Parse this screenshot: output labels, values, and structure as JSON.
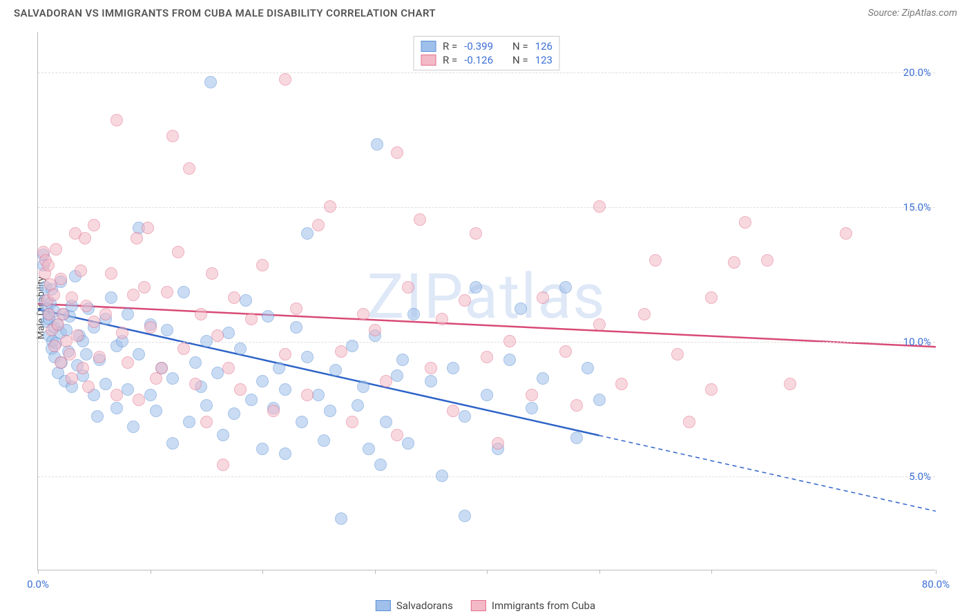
{
  "title": "SALVADORAN VS IMMIGRANTS FROM CUBA MALE DISABILITY CORRELATION CHART",
  "source": "Source: ZipAtlas.com",
  "watermark": "ZIPatlas",
  "ylabel": "Male Disability",
  "chart": {
    "type": "scatter",
    "xlim": [
      0,
      80
    ],
    "ylim": [
      1.5,
      21.5
    ],
    "x_ticks": [
      0,
      10,
      20,
      30,
      40,
      50,
      60,
      80
    ],
    "x_tick_labels": {
      "0": "0.0%",
      "80": "80.0%"
    },
    "y_gridlines": [
      5,
      10,
      15,
      20
    ],
    "y_tick_labels": {
      "5": "5.0%",
      "10": "10.0%",
      "15": "15.0%",
      "20": "20.0%"
    },
    "background_color": "#ffffff",
    "grid_color": "#dddddd",
    "axis_color": "#bbbbbb",
    "tick_label_color": "#3b6fd6",
    "point_radius": 9,
    "point_opacity": 0.55,
    "series": [
      {
        "name": "Salvadorans",
        "key": "salvadoran",
        "fill": "#9fc0ea",
        "stroke": "#5b8fd6",
        "line_color": "#2d63c8",
        "r": "-0.399",
        "n": "126",
        "regression": {
          "y_at_x0": 11.2,
          "y_at_x80": 3.7,
          "solid_until_x": 50
        },
        "points": [
          [
            0.5,
            13.2
          ],
          [
            0.5,
            12.8
          ],
          [
            0.6,
            11.5
          ],
          [
            0.7,
            12.0
          ],
          [
            0.8,
            11.2
          ],
          [
            0.8,
            10.7
          ],
          [
            0.9,
            11.0
          ],
          [
            1.0,
            10.2
          ],
          [
            1.0,
            10.8
          ],
          [
            1.1,
            11.4
          ],
          [
            1.2,
            9.7
          ],
          [
            1.2,
            11.9
          ],
          [
            1.3,
            10.0
          ],
          [
            1.4,
            10.5
          ],
          [
            1.5,
            9.4
          ],
          [
            1.5,
            11.1
          ],
          [
            1.6,
            9.9
          ],
          [
            1.7,
            10.6
          ],
          [
            1.8,
            8.8
          ],
          [
            2.0,
            10.3
          ],
          [
            2.0,
            12.2
          ],
          [
            2.1,
            9.2
          ],
          [
            2.3,
            11.0
          ],
          [
            2.4,
            8.5
          ],
          [
            2.5,
            10.4
          ],
          [
            2.7,
            9.6
          ],
          [
            2.8,
            10.9
          ],
          [
            3.0,
            8.3
          ],
          [
            3.0,
            11.3
          ],
          [
            3.3,
            12.4
          ],
          [
            3.5,
            9.1
          ],
          [
            3.7,
            10.2
          ],
          [
            4.0,
            8.7
          ],
          [
            4.0,
            10.0
          ],
          [
            4.3,
            9.5
          ],
          [
            4.5,
            11.2
          ],
          [
            5.0,
            8.0
          ],
          [
            5.0,
            10.5
          ],
          [
            5.3,
            7.2
          ],
          [
            5.5,
            9.3
          ],
          [
            6.0,
            10.8
          ],
          [
            6.0,
            8.4
          ],
          [
            6.5,
            11.6
          ],
          [
            7.0,
            7.5
          ],
          [
            7.0,
            9.8
          ],
          [
            7.5,
            10.0
          ],
          [
            8.0,
            8.2
          ],
          [
            8.0,
            11.0
          ],
          [
            8.5,
            6.8
          ],
          [
            9.0,
            9.5
          ],
          [
            9.0,
            14.2
          ],
          [
            10.0,
            8.0
          ],
          [
            10.0,
            10.6
          ],
          [
            10.5,
            7.4
          ],
          [
            11.0,
            9.0
          ],
          [
            11.5,
            10.4
          ],
          [
            12.0,
            8.6
          ],
          [
            12.0,
            6.2
          ],
          [
            13.0,
            11.8
          ],
          [
            13.5,
            7.0
          ],
          [
            14.0,
            9.2
          ],
          [
            14.5,
            8.3
          ],
          [
            15.0,
            10.0
          ],
          [
            15.0,
            7.6
          ],
          [
            15.4,
            19.6
          ],
          [
            16.0,
            8.8
          ],
          [
            16.5,
            6.5
          ],
          [
            17.0,
            10.3
          ],
          [
            17.5,
            7.3
          ],
          [
            18.0,
            9.7
          ],
          [
            18.5,
            11.5
          ],
          [
            19.0,
            7.8
          ],
          [
            20.0,
            8.5
          ],
          [
            20.0,
            6.0
          ],
          [
            20.5,
            10.9
          ],
          [
            21.0,
            7.5
          ],
          [
            21.5,
            9.0
          ],
          [
            22.0,
            8.2
          ],
          [
            22.0,
            5.8
          ],
          [
            23.0,
            10.5
          ],
          [
            23.5,
            7.0
          ],
          [
            24.0,
            9.4
          ],
          [
            24.0,
            14.0
          ],
          [
            25.0,
            8.0
          ],
          [
            25.5,
            6.3
          ],
          [
            26.0,
            7.4
          ],
          [
            26.5,
            8.9
          ],
          [
            27.0,
            3.4
          ],
          [
            28.0,
            9.8
          ],
          [
            28.5,
            7.6
          ],
          [
            29.0,
            8.3
          ],
          [
            29.5,
            6.0
          ],
          [
            30.0,
            10.2
          ],
          [
            30.2,
            17.3
          ],
          [
            30.5,
            5.4
          ],
          [
            31.0,
            7.0
          ],
          [
            32.0,
            8.7
          ],
          [
            32.5,
            9.3
          ],
          [
            33.0,
            6.2
          ],
          [
            33.5,
            11.0
          ],
          [
            35.0,
            8.5
          ],
          [
            36.0,
            5.0
          ],
          [
            37.0,
            9.0
          ],
          [
            38.0,
            3.5
          ],
          [
            38.0,
            7.2
          ],
          [
            39.0,
            12.0
          ],
          [
            40.0,
            8.0
          ],
          [
            41.0,
            6.0
          ],
          [
            42.0,
            9.3
          ],
          [
            43.0,
            11.2
          ],
          [
            44.0,
            7.5
          ],
          [
            45.0,
            8.6
          ],
          [
            47.0,
            12.0
          ],
          [
            48.0,
            6.4
          ],
          [
            49.0,
            9.0
          ],
          [
            50.0,
            7.8
          ]
        ]
      },
      {
        "name": "Immigrants from Cuba",
        "key": "cuba",
        "fill": "#f4b9c6",
        "stroke": "#e06f8d",
        "line_color": "#d84a76",
        "r": "-0.126",
        "n": "123",
        "regression": {
          "y_at_x0": 11.4,
          "y_at_x80": 9.8,
          "solid_until_x": 80
        },
        "points": [
          [
            0.5,
            13.3
          ],
          [
            0.6,
            12.5
          ],
          [
            0.7,
            13.0
          ],
          [
            0.8,
            11.5
          ],
          [
            0.9,
            12.8
          ],
          [
            1.0,
            11.0
          ],
          [
            1.1,
            12.1
          ],
          [
            1.2,
            10.4
          ],
          [
            1.4,
            11.7
          ],
          [
            1.5,
            9.8
          ],
          [
            1.6,
            13.4
          ],
          [
            1.8,
            10.6
          ],
          [
            2.0,
            12.3
          ],
          [
            2.0,
            9.2
          ],
          [
            2.2,
            11.0
          ],
          [
            2.5,
            10.0
          ],
          [
            2.8,
            9.5
          ],
          [
            3.0,
            11.6
          ],
          [
            3.0,
            8.6
          ],
          [
            3.3,
            14.0
          ],
          [
            3.5,
            10.2
          ],
          [
            3.8,
            12.6
          ],
          [
            4.0,
            9.0
          ],
          [
            4.3,
            11.3
          ],
          [
            4.5,
            8.3
          ],
          [
            5.0,
            10.7
          ],
          [
            5.0,
            14.3
          ],
          [
            4.2,
            13.8
          ],
          [
            5.5,
            9.4
          ],
          [
            6.0,
            11.0
          ],
          [
            6.5,
            12.5
          ],
          [
            7.0,
            8.0
          ],
          [
            7.0,
            18.2
          ],
          [
            7.5,
            10.3
          ],
          [
            8.0,
            9.2
          ],
          [
            8.5,
            11.7
          ],
          [
            8.8,
            13.8
          ],
          [
            9.0,
            7.8
          ],
          [
            9.5,
            12.0
          ],
          [
            9.8,
            14.2
          ],
          [
            10.0,
            10.5
          ],
          [
            10.5,
            8.6
          ],
          [
            11.0,
            9.0
          ],
          [
            11.5,
            11.8
          ],
          [
            12.0,
            17.6
          ],
          [
            12.5,
            13.3
          ],
          [
            13.0,
            9.7
          ],
          [
            13.5,
            16.4
          ],
          [
            14.0,
            8.4
          ],
          [
            14.5,
            11.0
          ],
          [
            15.0,
            7.0
          ],
          [
            15.5,
            12.5
          ],
          [
            16.0,
            10.2
          ],
          [
            16.5,
            5.4
          ],
          [
            17.0,
            9.0
          ],
          [
            17.5,
            11.6
          ],
          [
            18.0,
            8.2
          ],
          [
            19.0,
            10.8
          ],
          [
            20.0,
            12.8
          ],
          [
            21.0,
            7.4
          ],
          [
            22.0,
            9.5
          ],
          [
            22.0,
            19.7
          ],
          [
            23.0,
            11.2
          ],
          [
            24.0,
            8.0
          ],
          [
            25.0,
            14.3
          ],
          [
            26.0,
            15.0
          ],
          [
            27.0,
            9.6
          ],
          [
            28.0,
            7.0
          ],
          [
            29.0,
            11.0
          ],
          [
            30.0,
            10.4
          ],
          [
            31.0,
            8.5
          ],
          [
            32.0,
            6.5
          ],
          [
            32.0,
            17.0
          ],
          [
            33.0,
            12.0
          ],
          [
            34.0,
            14.5
          ],
          [
            35.0,
            9.0
          ],
          [
            36.0,
            10.8
          ],
          [
            37.0,
            7.4
          ],
          [
            38.0,
            11.5
          ],
          [
            39.0,
            14.0
          ],
          [
            40.0,
            9.4
          ],
          [
            41.0,
            6.2
          ],
          [
            42.0,
            10.0
          ],
          [
            44.0,
            8.0
          ],
          [
            45.0,
            11.6
          ],
          [
            47.0,
            9.6
          ],
          [
            48.0,
            7.6
          ],
          [
            50.0,
            10.6
          ],
          [
            50.0,
            15.0
          ],
          [
            52.0,
            8.4
          ],
          [
            54.0,
            11.0
          ],
          [
            55.0,
            13.0
          ],
          [
            57.0,
            9.5
          ],
          [
            58.0,
            7.0
          ],
          [
            60.0,
            11.6
          ],
          [
            60.0,
            8.2
          ],
          [
            62.0,
            12.9
          ],
          [
            63.0,
            14.4
          ],
          [
            65.0,
            13.0
          ],
          [
            67.0,
            8.4
          ],
          [
            72.0,
            14.0
          ]
        ]
      }
    ]
  },
  "stats_legend": {
    "r_label": "R =",
    "n_label": "N ="
  },
  "bottom_legend": {
    "items": [
      "Salvadorans",
      "Immigrants from Cuba"
    ]
  }
}
